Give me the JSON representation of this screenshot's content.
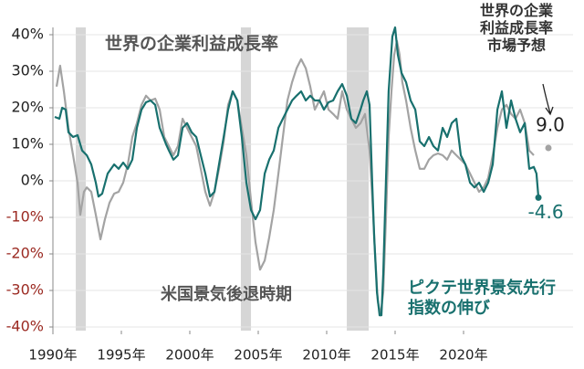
{
  "chart_data": {
    "type": "line",
    "xlim": [
      1990,
      2028
    ],
    "ylim": [
      -41,
      42
    ],
    "xticks": [
      {
        "value": 1990,
        "label": "1990年"
      },
      {
        "value": 1995,
        "label": "1995年"
      },
      {
        "value": 2000,
        "label": "2000年"
      },
      {
        "value": 2005,
        "label": "2005年"
      },
      {
        "value": 2010,
        "label": "2010年"
      },
      {
        "value": 2015,
        "label": "2015年"
      },
      {
        "value": 2020,
        "label": "2020年"
      }
    ],
    "yticks": [
      {
        "value": 40,
        "label": "40%"
      },
      {
        "value": 30,
        "label": "30%"
      },
      {
        "value": 20,
        "label": "20%"
      },
      {
        "value": 10,
        "label": "10%"
      },
      {
        "value": 0,
        "label": "0%"
      },
      {
        "value": -10,
        "label": "-10%"
      },
      {
        "value": -20,
        "label": "-20%"
      },
      {
        "value": -30,
        "label": "-30%"
      },
      {
        "value": -40,
        "label": "-40%"
      }
    ],
    "negative_tick_color": "#9b2a22",
    "grid": true,
    "shaded_periods": [
      [
        1991.67,
        1992.4
      ],
      [
        2003.73,
        2004.47
      ],
      [
        2011.47,
        2013.07
      ]
    ],
    "shaded_label": "米国景気後退時期",
    "series": [
      {
        "name": "世界の企業利益成長率",
        "color": "#a3a3a3",
        "x": [
          1990.27,
          1990.53,
          1990.8,
          1991.13,
          1991.47,
          1991.8,
          1992,
          1992.27,
          1992.47,
          1992.8,
          1993.13,
          1993.47,
          1993.8,
          1994.13,
          1994.47,
          1994.8,
          1995.13,
          1995.47,
          1995.8,
          1996.13,
          1996.47,
          1996.8,
          1997.13,
          1997.47,
          1997.8,
          1998.13,
          1998.47,
          1998.8,
          1999.13,
          1999.47,
          1999.8,
          2000.13,
          2000.47,
          2000.8,
          2001.13,
          2001.47,
          2001.8,
          2002.13,
          2002.47,
          2002.8,
          2003.13,
          2003.47,
          2003.8,
          2004.13,
          2004.47,
          2004.8,
          2005.13,
          2005.47,
          2005.8,
          2006.13,
          2006.47,
          2006.8,
          2007.13,
          2007.47,
          2007.8,
          2008.13,
          2008.47,
          2008.8,
          2009.13,
          2009.47,
          2009.8,
          2010.13,
          2010.47,
          2010.8,
          2011.13,
          2011.47,
          2011.8,
          2012.13,
          2012.47,
          2012.8,
          2013.13,
          2013.33,
          2013.53,
          2013.73,
          2013.93,
          2014.13,
          2014.33,
          2014.53,
          2014.73,
          2014.93,
          2015.13,
          2015.33,
          2015.53,
          2015.8,
          2016.13,
          2016.47,
          2016.8,
          2017.13,
          2017.47,
          2017.8,
          2018.13,
          2018.47,
          2018.8,
          2019.13,
          2019.47,
          2019.8,
          2020.13,
          2020.47,
          2020.8,
          2021.13,
          2021.47,
          2021.8,
          2022.13,
          2022.47,
          2022.8,
          2023.13,
          2023.47,
          2023.8,
          2024.13,
          2024.47,
          2024.8,
          2025.13
        ],
        "values": [
          25.8,
          31.5,
          24.5,
          14.5,
          7,
          -0.5,
          -9.3,
          -3,
          -1.8,
          -3,
          -9.3,
          -16,
          -10.5,
          -6,
          -3.5,
          -3,
          -0.5,
          4.5,
          12,
          15.8,
          20.8,
          23.3,
          22,
          22.5,
          19.5,
          12,
          9.5,
          7,
          9.5,
          17,
          14.5,
          12,
          9.5,
          3.3,
          -3,
          -6.8,
          -3,
          3.3,
          10.8,
          20.8,
          24.5,
          22,
          14.5,
          7,
          -5.5,
          -16.8,
          -24.3,
          -21.8,
          -15.5,
          -8,
          2,
          12,
          22,
          27,
          30.8,
          33.3,
          30.8,
          25.8,
          19.5,
          22,
          24.5,
          19.5,
          18.3,
          17,
          24.5,
          19.5,
          17,
          14.5,
          15.8,
          18.3,
          8.3,
          -4.3,
          -19.3,
          -33,
          -36.8,
          -30.5,
          -10.5,
          12,
          24.5,
          34.5,
          38.3,
          34.5,
          27,
          22,
          14.5,
          8.3,
          3.3,
          3.3,
          5.8,
          7,
          7.5,
          7,
          5.8,
          8.3,
          7,
          5.8,
          4.5,
          2,
          -0.5,
          -3,
          -1.8,
          0.8,
          7,
          14.5,
          19.5,
          20.8,
          18.3,
          17,
          19.5,
          15.8,
          8.3,
          7
        ]
      },
      {
        "name": "ピクテ世界景気先行\n指数の伸び",
        "color": "#18706e",
        "end_marker": true,
        "x": [
          1990.13,
          1990.47,
          1990.67,
          1990.93,
          1991.13,
          1991.47,
          1991.8,
          1992.13,
          1992.47,
          1992.8,
          1993.13,
          1993.33,
          1993.6,
          1994,
          1994.47,
          1994.8,
          1995.13,
          1995.47,
          1995.8,
          1996.13,
          1996.47,
          1996.8,
          1997.13,
          1997.47,
          1997.8,
          1998.27,
          1998.47,
          1998.8,
          1999.13,
          1999.47,
          1999.8,
          2000.13,
          2000.47,
          2000.8,
          2001.13,
          2001.47,
          2001.8,
          2002.13,
          2002.47,
          2002.8,
          2003.13,
          2003.47,
          2003.8,
          2004.13,
          2004.47,
          2004.8,
          2005.13,
          2005.47,
          2005.8,
          2006.13,
          2006.47,
          2006.8,
          2007.13,
          2007.47,
          2007.8,
          2008.13,
          2008.47,
          2008.8,
          2009.13,
          2009.47,
          2009.8,
          2010.13,
          2010.47,
          2010.8,
          2011.13,
          2011.47,
          2011.8,
          2012.13,
          2012.47,
          2012.67,
          2012.93,
          2013.13,
          2013.33,
          2013.47,
          2013.67,
          2013.87,
          2014,
          2014.13,
          2014.33,
          2014.53,
          2014.8,
          2015,
          2015.2,
          2015.47,
          2015.8,
          2016.13,
          2016.47,
          2016.8,
          2017.13,
          2017.47,
          2017.8,
          2018.13,
          2018.47,
          2018.8,
          2019.13,
          2019.47,
          2019.8,
          2020.13,
          2020.47,
          2020.8,
          2021.13,
          2021.47,
          2021.8,
          2022.13,
          2022.47,
          2022.8,
          2023.13,
          2023.47,
          2023.8,
          2024.13,
          2024.47,
          2024.8,
          2025.13,
          2025.33,
          2025.47
        ],
        "values": [
          17.5,
          17,
          20,
          19.5,
          13.3,
          12,
          12.5,
          8.3,
          7,
          4.5,
          -0.5,
          -4.3,
          -3.5,
          2,
          4.5,
          3.3,
          5,
          3.3,
          5.8,
          14.5,
          19.5,
          21.5,
          22,
          20.8,
          14.5,
          10,
          8.3,
          5.8,
          7,
          14.5,
          15.8,
          13.3,
          12,
          7,
          2,
          -4.3,
          -3,
          4.5,
          12,
          19.5,
          24.5,
          22,
          12,
          -0.5,
          -8,
          -10.5,
          -8,
          2,
          5.8,
          8.3,
          14.5,
          17,
          19.5,
          22,
          23.3,
          24.5,
          22,
          23.3,
          22,
          22,
          19.5,
          21.5,
          22,
          24.5,
          26.5,
          23.3,
          17,
          15.8,
          19.5,
          22,
          24.5,
          20.8,
          -0.5,
          -15.5,
          -30.5,
          -36.8,
          -36.8,
          -25.5,
          -0.5,
          24.5,
          39.5,
          42,
          34.5,
          29.5,
          27,
          22,
          19.5,
          10.8,
          9.5,
          12,
          9.5,
          8.3,
          14.5,
          12,
          15.8,
          17,
          7,
          4.5,
          -0.5,
          -1.8,
          -0.5,
          -3,
          -0.5,
          4.5,
          19.5,
          24.5,
          14.5,
          22,
          17,
          13.3,
          15.8,
          3.3,
          3.8,
          2,
          -4.6
        ]
      },
      {
        "name": "世界の企業\n利益成長率\n市場予想",
        "color": "#a3a3a3",
        "marker_only": true,
        "x": [
          2026.2
        ],
        "values": [
          9
        ],
        "value_labels": [
          "9.0"
        ]
      }
    ]
  }
}
